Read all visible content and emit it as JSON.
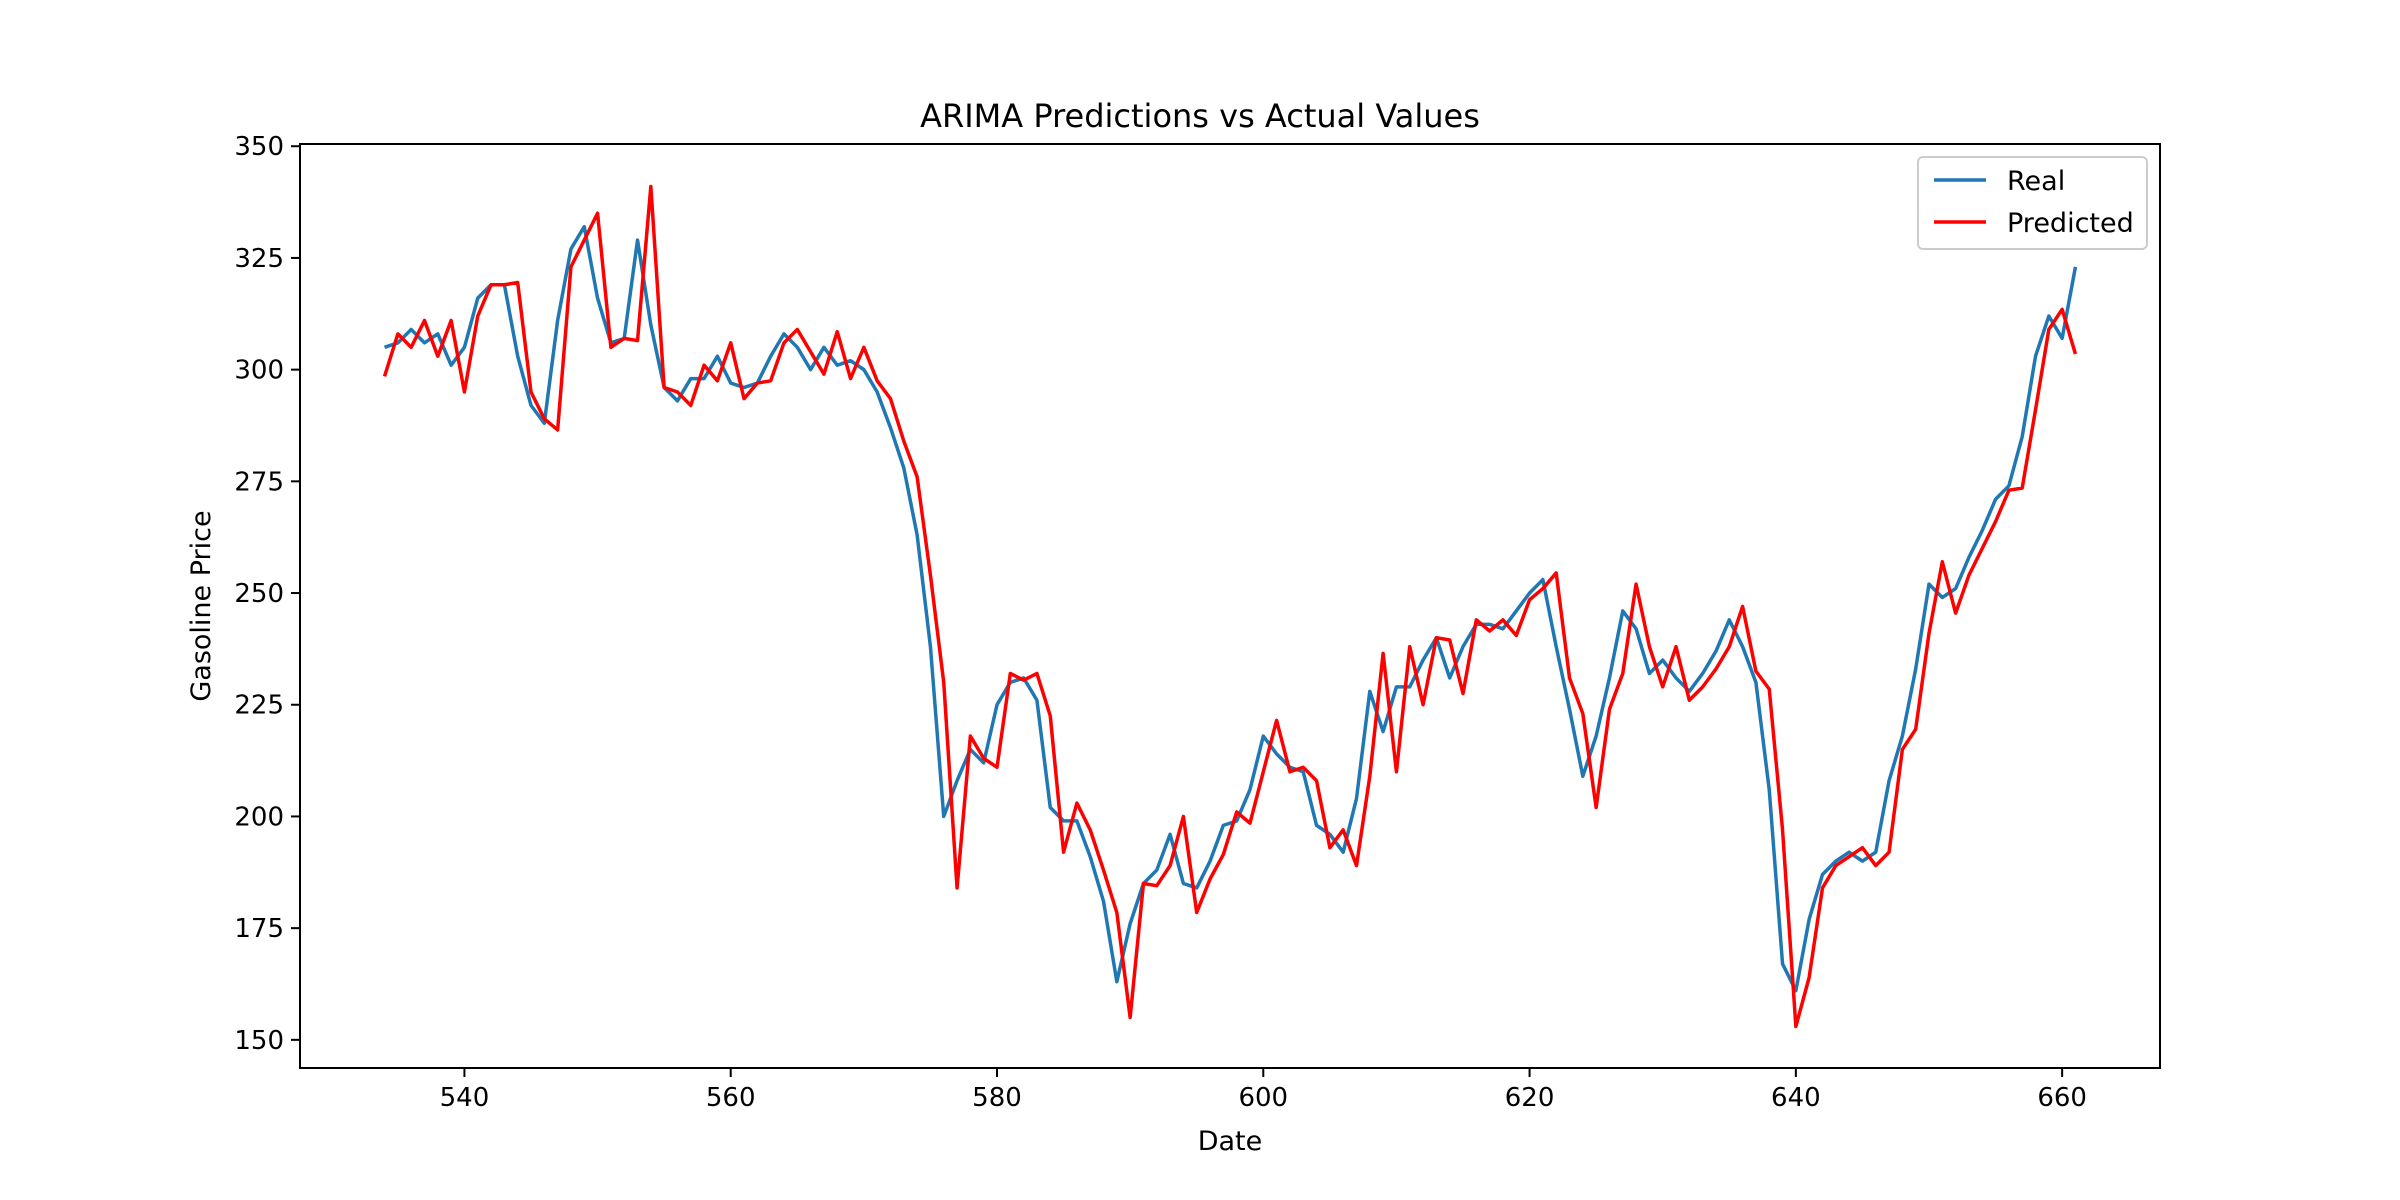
{
  "chart_data": {
    "type": "line",
    "title": "ARIMA Predictions vs Actual Values",
    "xlabel": "Date",
    "ylabel": "Gasoline Price",
    "xlim": [
      527.65,
      667.35
    ],
    "ylim": [
      143.7,
      350.5
    ],
    "xticks": [
      540,
      560,
      580,
      600,
      620,
      640,
      660
    ],
    "yticks": [
      150,
      175,
      200,
      225,
      250,
      275,
      300,
      325,
      350
    ],
    "grid": false,
    "legend": "top-right",
    "x_start": 534,
    "series": [
      {
        "name": "Real",
        "color": "#1f77b4",
        "values": [
          305,
          306,
          309,
          306,
          308,
          301,
          305,
          316,
          319,
          319,
          303,
          292,
          288,
          311,
          327,
          332,
          316,
          306,
          307,
          329,
          310,
          296,
          293,
          298,
          298,
          303,
          297,
          296,
          297,
          303,
          308,
          305,
          300,
          305,
          301,
          302,
          300,
          295,
          287,
          278,
          263,
          238,
          200,
          208,
          215,
          212,
          225,
          230,
          231,
          226,
          202,
          199,
          199,
          191,
          181,
          163,
          176,
          185,
          188,
          196,
          185,
          184,
          190,
          198,
          199,
          206,
          218,
          214,
          211,
          210,
          198,
          196,
          192,
          204,
          228,
          219,
          229,
          229,
          235,
          240,
          231,
          238,
          243,
          243,
          242,
          246,
          250,
          253,
          238,
          224,
          209,
          218,
          231,
          246,
          242,
          232,
          235,
          231,
          228,
          232,
          237,
          244,
          238,
          230,
          206,
          167,
          161,
          177,
          187,
          190,
          192,
          190,
          192,
          208,
          218,
          233,
          252,
          249,
          251,
          258,
          264,
          271,
          274,
          285,
          303,
          312,
          307,
          323
        ]
      },
      {
        "name": "Predicted",
        "color": "#ff0000",
        "values": [
          298.5,
          308,
          305,
          311,
          303,
          311,
          295,
          312,
          319,
          319,
          319.5,
          295,
          289,
          286.5,
          323,
          329,
          335,
          305,
          307,
          306.5,
          341,
          296,
          295,
          292,
          301,
          297.5,
          306,
          293.5,
          297,
          297.5,
          306,
          309,
          304,
          299,
          308.5,
          298,
          305,
          297.5,
          293.5,
          284,
          276,
          254,
          230,
          184,
          218,
          213,
          211,
          232,
          230.5,
          232,
          222.5,
          192,
          203,
          197,
          188,
          178.5,
          155,
          185,
          184.5,
          189,
          200,
          178.5,
          186,
          191.5,
          201,
          198.5,
          210,
          221.5,
          210,
          211,
          208,
          193,
          197,
          189,
          209,
          236.5,
          210,
          238,
          225,
          240,
          239.5,
          227.5,
          244,
          241.5,
          244,
          240.5,
          248.5,
          251,
          254.5,
          231,
          223,
          202,
          224,
          232,
          252,
          238,
          229,
          238,
          226,
          229,
          233,
          238,
          247,
          232.5,
          228.5,
          197,
          153,
          164,
          184,
          189,
          191,
          193,
          189,
          192,
          215,
          219.5,
          241,
          257,
          245.5,
          254,
          260,
          266,
          273,
          273.5,
          291,
          309,
          313.5,
          303.5
        ]
      }
    ]
  }
}
